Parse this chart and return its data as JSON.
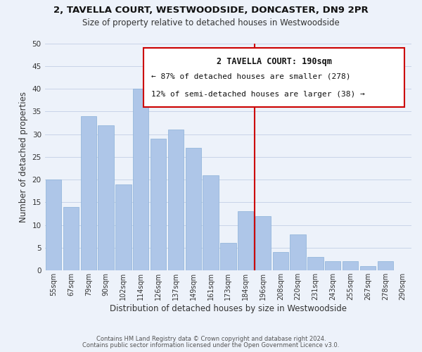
{
  "title": "2, TAVELLA COURT, WESTWOODSIDE, DONCASTER, DN9 2PR",
  "subtitle": "Size of property relative to detached houses in Westwoodside",
  "xlabel": "Distribution of detached houses by size in Westwoodside",
  "ylabel": "Number of detached properties",
  "footer_line1": "Contains HM Land Registry data © Crown copyright and database right 2024.",
  "footer_line2": "Contains public sector information licensed under the Open Government Licence v3.0.",
  "bar_labels": [
    "55sqm",
    "67sqm",
    "79sqm",
    "90sqm",
    "102sqm",
    "114sqm",
    "126sqm",
    "137sqm",
    "149sqm",
    "161sqm",
    "173sqm",
    "184sqm",
    "196sqm",
    "208sqm",
    "220sqm",
    "231sqm",
    "243sqm",
    "255sqm",
    "267sqm",
    "278sqm",
    "290sqm"
  ],
  "bar_values": [
    20,
    14,
    34,
    32,
    19,
    40,
    29,
    31,
    27,
    21,
    6,
    13,
    12,
    4,
    8,
    3,
    2,
    2,
    1,
    2,
    0
  ],
  "bar_color": "#aec6e8",
  "bar_edge_color": "#aec6e8",
  "grid_color": "#c8d4e8",
  "background_color": "#edf2fa",
  "annotation_title": "2 TAVELLA COURT: 190sqm",
  "annotation_line1": "← 87% of detached houses are smaller (278)",
  "annotation_line2": "12% of semi-detached houses are larger (38) →",
  "reference_line_x": 11.5,
  "reference_line_color": "#cc0000",
  "ylim": [
    0,
    50
  ],
  "yticks": [
    0,
    5,
    10,
    15,
    20,
    25,
    30,
    35,
    40,
    45,
    50
  ]
}
